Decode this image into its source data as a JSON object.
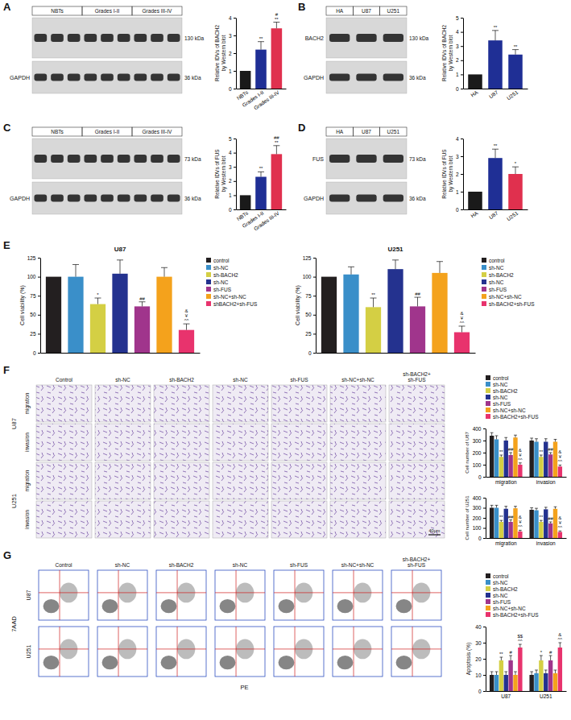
{
  "panel_labels": [
    "A",
    "B",
    "C",
    "D",
    "E",
    "F",
    "G"
  ],
  "blots": [
    {
      "lanes": [
        "NBTs",
        "Grades I-II",
        "Grades III-IV"
      ],
      "rows": [
        {
          "kda": "130 kDa"
        },
        {
          "protein": "GAPDH",
          "kda": "36 kDa"
        }
      ]
    },
    {
      "lanes": [
        "HA",
        "U87",
        "U251"
      ],
      "rows": [
        {
          "protein": "BACH2",
          "kda": "130 kDa"
        },
        {
          "protein": "GAPDH",
          "kda": "36 kDa"
        }
      ]
    },
    {
      "lanes": [
        "NBTs",
        "Grades I-II",
        "Grades III-IV"
      ],
      "rows": [
        {
          "kda": "73 kDa"
        },
        {
          "protein": "GAPDH",
          "kda": "36 kDa"
        }
      ]
    },
    {
      "lanes": [
        "HA",
        "U87",
        "U251"
      ],
      "rows": [
        {
          "protein": "FUS",
          "kda": "73 kDa"
        },
        {
          "protein": "GAPDH",
          "kda": "36 kDa"
        }
      ]
    }
  ],
  "migration_images": {
    "columns": [
      [
        "Control"
      ],
      [
        "sh-NC"
      ],
      [
        "sh-BACH2"
      ],
      [
        "sh-NC"
      ],
      [
        "sh-FUS"
      ],
      [
        "sh-NC+sh-NC"
      ],
      [
        "sh-BACH2+",
        "sh-FUS"
      ]
    ],
    "cells": [
      "U87",
      "U251"
    ],
    "assays": [
      "migration",
      "invasion"
    ],
    "scale_bar": "40μm"
  },
  "flow_cytometry": {
    "columns": [
      [
        "Control"
      ],
      [
        "sh-NC"
      ],
      [
        "sh-BACH2"
      ],
      [
        "sh-NC"
      ],
      [
        "sh-FUS"
      ],
      [
        "sh-NC+sh-NC"
      ],
      [
        "sh-BACH2+",
        "sh-FUS"
      ]
    ],
    "cells": [
      "U87",
      "U251"
    ],
    "y_label": "7AAD",
    "x_label": "PE"
  },
  "chart_data": [
    {
      "type": "bar",
      "categories": [
        "NBTs",
        "Grades I-II",
        "Grades III-IV"
      ],
      "values": [
        1,
        2.2,
        3.4
      ],
      "errors": [
        0,
        0.45,
        0.35
      ],
      "colors": [
        "#1a1a1a",
        "#1f2f95",
        "#e0304e"
      ],
      "ylim": [
        0,
        4
      ],
      "yticks": [
        0,
        1,
        2,
        3,
        4
      ],
      "y_label": [
        "Relative IDVs of BACH2",
        "by Western blot"
      ],
      "significance": [
        null,
        [
          "**"
        ],
        [
          "#",
          "**"
        ]
      ]
    },
    {
      "type": "bar",
      "categories": [
        "HA",
        "U87",
        "U251"
      ],
      "values": [
        1,
        3.4,
        2.4
      ],
      "errors": [
        0,
        0.7,
        0.35
      ],
      "colors": [
        "#1a1a1a",
        "#1f2f95",
        "#1f2f95"
      ],
      "ylim": [
        0,
        5
      ],
      "yticks": [
        0,
        1,
        2,
        3,
        4,
        5
      ],
      "y_label": [
        "Relative IDVs of BACH2",
        "by Western blot"
      ],
      "significance": [
        null,
        [
          "**"
        ],
        [
          "**"
        ]
      ]
    },
    {
      "type": "bar",
      "categories": [
        "NBTs",
        "Grades I-II",
        "Grades III-IV"
      ],
      "values": [
        1,
        2.3,
        3.9
      ],
      "errors": [
        0,
        0.35,
        0.6
      ],
      "colors": [
        "#1a1a1a",
        "#1f2f95",
        "#e0304e"
      ],
      "ylim": [
        0,
        5
      ],
      "yticks": [
        0,
        1,
        2,
        3,
        4,
        5
      ],
      "y_label": [
        "Relative IDVs of FUS",
        "by Western blot"
      ],
      "significance": [
        null,
        [
          "**"
        ],
        [
          "##",
          "**"
        ]
      ]
    },
    {
      "type": "bar",
      "categories": [
        "HA",
        "U87",
        "U251"
      ],
      "values": [
        1,
        2.9,
        2.0
      ],
      "errors": [
        0,
        0.5,
        0.4
      ],
      "colors": [
        "#1a1a1a",
        "#1f2f95",
        "#e0304e"
      ],
      "ylim": [
        0,
        4
      ],
      "yticks": [
        0,
        1,
        2,
        3,
        4
      ],
      "y_label": [
        "Relative IDVs of FUS",
        "by Western blot"
      ],
      "significance": [
        null,
        [
          "**"
        ],
        [
          "*"
        ]
      ]
    },
    {
      "type": "bar",
      "title": "U87",
      "categories": [
        "control",
        "sh-NC",
        "sh-BACH2",
        "sh-NC",
        "sh-FUS",
        "sh-NC+sh-NC",
        "shBACH2+sh-FUS"
      ],
      "values": [
        100,
        100,
        64,
        104,
        61,
        100,
        30
      ],
      "errors": [
        0,
        16,
        8,
        18,
        6,
        12,
        8
      ],
      "colors": [
        "#231f20",
        "#3a8fc9",
        "#d4cf44",
        "#24328f",
        "#a0358c",
        "#f4a21c",
        "#e8336d"
      ],
      "ylim": [
        0,
        125
      ],
      "yticks": [
        0,
        25,
        50,
        75,
        100,
        125
      ],
      "y_label": [
        "Cell viability (%)"
      ],
      "tick_labels": "y",
      "legend": "right",
      "significance": [
        null,
        null,
        [
          "*"
        ],
        null,
        [
          "##"
        ],
        null,
        [
          "&",
          "¥",
          "^^"
        ]
      ]
    },
    {
      "type": "bar",
      "title": "U251",
      "categories": [
        "control",
        "sh-NC",
        "sh-BACH2",
        "sh-NC",
        "sh-FUS",
        "sh-NC+sh-NC",
        "sh-BACH2+sh-FUS"
      ],
      "values": [
        100,
        103,
        60,
        110,
        61,
        105,
        27
      ],
      "errors": [
        0,
        10,
        12,
        12,
        12,
        15,
        8
      ],
      "colors": [
        "#231f20",
        "#3a8fc9",
        "#d4cf44",
        "#24328f",
        "#a0358c",
        "#f4a21c",
        "#e8336d"
      ],
      "ylim": [
        0,
        125
      ],
      "yticks": [
        0,
        25,
        50,
        75,
        100,
        125
      ],
      "y_label": [
        "Cell viability (%)"
      ],
      "tick_labels": "y",
      "legend": "right",
      "significance": [
        null,
        null,
        [
          "**"
        ],
        null,
        [
          "##"
        ],
        null,
        [
          "&",
          "¥",
          "^^"
        ]
      ]
    },
    {
      "type": "bar",
      "categories": [
        "migration",
        "invasion"
      ],
      "ylim": [
        0,
        400
      ],
      "yticks": [
        0,
        100,
        200,
        300,
        400
      ],
      "y_label": [
        "Cell number of U87"
      ],
      "legend": "top",
      "series": [
        {
          "name": "control",
          "color": "#231f20",
          "values": [
            340,
            300
          ],
          "errors": [
            25,
            20
          ]
        },
        {
          "name": "sh-NC",
          "color": "#3a8fc9",
          "values": [
            310,
            290
          ],
          "errors": [
            30,
            25
          ]
        },
        {
          "name": "sh-BACH2",
          "color": "#d4cf44",
          "values": [
            165,
            165
          ],
          "errors": [
            15,
            15
          ],
          "significance": [
            [
              "**"
            ],
            [
              "**"
            ]
          ]
        },
        {
          "name": "sh-NC",
          "color": "#24328f",
          "values": [
            300,
            290
          ],
          "errors": [
            25,
            25
          ]
        },
        {
          "name": "sh-FUS",
          "color": "#a0358c",
          "values": [
            180,
            185
          ],
          "errors": [
            20,
            15
          ],
          "significance": [
            [
              "##"
            ],
            [
              "##"
            ]
          ]
        },
        {
          "name": "sh-NC+sh-NC",
          "color": "#f4a21c",
          "values": [
            325,
            290
          ],
          "errors": [
            20,
            20
          ]
        },
        {
          "name": "sh-BACH2+sh-FUS",
          "color": "#e8336d",
          "values": [
            100,
            85
          ],
          "errors": [
            15,
            12
          ],
          "significance": [
            [
              "&",
              "¥",
              "^^"
            ],
            [
              "&",
              "¥",
              "^^"
            ]
          ]
        }
      ]
    },
    {
      "type": "bar",
      "categories": [
        "migration",
        "invasion"
      ],
      "ylim": [
        0,
        400
      ],
      "yticks": [
        0,
        100,
        200,
        300,
        400
      ],
      "y_label": [
        "Cell number of U251"
      ],
      "series": [
        {
          "color": "#231f20",
          "values": [
            300,
            280
          ],
          "errors": [
            25,
            20
          ]
        },
        {
          "color": "#3a8fc9",
          "values": [
            300,
            275
          ],
          "errors": [
            25,
            20
          ]
        },
        {
          "color": "#d4cf44",
          "values": [
            160,
            160
          ],
          "errors": [
            15,
            15
          ],
          "significance": [
            [
              "**"
            ],
            [
              "**"
            ]
          ]
        },
        {
          "color": "#24328f",
          "values": [
            290,
            285
          ],
          "errors": [
            25,
            20
          ]
        },
        {
          "color": "#a0358c",
          "values": [
            160,
            145
          ],
          "errors": [
            20,
            15
          ],
          "significance": [
            [
              "##"
            ],
            [
              "##"
            ]
          ]
        },
        {
          "color": "#f4a21c",
          "values": [
            295,
            290
          ],
          "errors": [
            20,
            20
          ]
        },
        {
          "color": "#e8336d",
          "values": [
            65,
            60
          ],
          "errors": [
            12,
            10
          ],
          "significance": [
            [
              "&",
              "¥",
              "^^"
            ],
            [
              "&",
              "¥",
              "^^"
            ]
          ]
        }
      ]
    },
    {
      "type": "bar",
      "categories": [
        "U87",
        "U251"
      ],
      "ylim": [
        0,
        40
      ],
      "yticks": [
        0,
        10,
        20,
        30,
        40
      ],
      "y_label": [
        "Apoptosis (%)"
      ],
      "legend": "top",
      "series": [
        {
          "name": "control",
          "color": "#231f20",
          "values": [
            10,
            10
          ],
          "errors": [
            2,
            2
          ]
        },
        {
          "name": "sh-NC",
          "color": "#3a8fc9",
          "values": [
            10,
            11
          ],
          "errors": [
            2,
            2
          ]
        },
        {
          "name": "sh-BACH2",
          "color": "#d4cf44",
          "values": [
            19,
            19
          ],
          "errors": [
            2,
            3
          ],
          "significance": [
            [
              "**"
            ],
            [
              "*"
            ]
          ]
        },
        {
          "name": "sh-NC",
          "color": "#24328f",
          "values": [
            10,
            11
          ],
          "errors": [
            2,
            2
          ]
        },
        {
          "name": "sh-FUS",
          "color": "#a0358c",
          "values": [
            19,
            19
          ],
          "errors": [
            3,
            3
          ],
          "significance": [
            [
              "#"
            ],
            [
              "#"
            ]
          ]
        },
        {
          "name": "sh-NC+sh-NC",
          "color": "#f4a21c",
          "values": [
            10,
            11
          ],
          "errors": [
            2,
            2
          ]
        },
        {
          "name": "sh-BACH2+sh-FUS",
          "color": "#e8336d",
          "values": [
            27,
            27
          ],
          "errors": [
            2,
            3
          ],
          "significance": [
            [
              "$$",
              "^^"
            ],
            [
              "&",
              "^^"
            ]
          ]
        }
      ]
    }
  ]
}
